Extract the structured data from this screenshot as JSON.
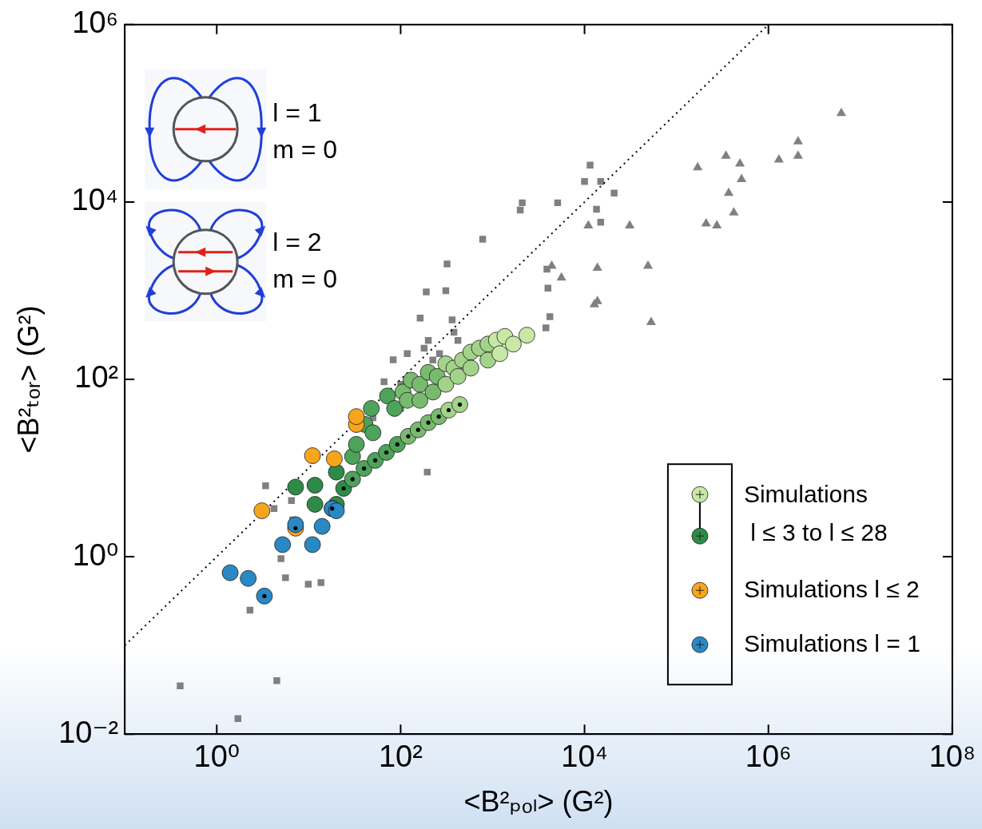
{
  "chart_data": {
    "type": "scatter",
    "x_label": "<B²ₚₒₗ> (G²)",
    "y_label": "<B²ₜₒᵣ> (G²)",
    "log": true,
    "grid": false,
    "legend": "bottom right",
    "xlim": [
      0.1,
      100000000
    ],
    "ylim": [
      0.01,
      1000000
    ],
    "xticks": [
      {
        "value": 1,
        "label": "10⁰"
      },
      {
        "value": 100,
        "label": "10²"
      },
      {
        "value": 10000,
        "label": "10⁴"
      },
      {
        "value": 1000000,
        "label": "10⁶"
      },
      {
        "value": 100000000,
        "label": "10⁸"
      }
    ],
    "yticks": [
      {
        "value": 0.01,
        "label": "10⁻²"
      },
      {
        "value": 1,
        "label": "10⁰"
      },
      {
        "value": 100,
        "label": "10²"
      },
      {
        "value": 10000,
        "label": "10⁴"
      },
      {
        "value": 1000000,
        "label": "10⁶"
      }
    ],
    "annotations": [
      "l = 1",
      "m = 0",
      "l = 2",
      "m = 0"
    ],
    "series": [
      {
        "color": "#808080",
        "marker": "square",
        "values": [
          [
            0.4,
            0.035
          ],
          [
            1.7,
            0.015
          ],
          [
            4.5,
            0.04
          ],
          [
            3.4,
            6.3
          ],
          [
            2.3,
            0.25
          ],
          [
            4.9,
            1.4
          ],
          [
            5,
            0.95
          ],
          [
            5.6,
            0.58
          ],
          [
            9.9,
            0.49
          ],
          [
            13.6,
            0.51
          ],
          [
            4.2,
            3.5
          ],
          [
            6.5,
            4.3
          ],
          [
            6.7,
            2.6
          ],
          [
            66,
            94
          ],
          [
            83,
            166
          ],
          [
            118,
            195
          ],
          [
            100,
            88
          ],
          [
            190,
            970
          ],
          [
            163,
            490
          ],
          [
            320,
            2000
          ],
          [
            310,
            1000
          ],
          [
            363,
            468
          ],
          [
            380,
            340
          ],
          [
            200,
            275
          ],
          [
            265,
            195
          ],
          [
            224,
            165
          ],
          [
            180,
            225
          ],
          [
            340,
            150
          ],
          [
            420,
            275
          ],
          [
            100,
            47
          ],
          [
            50,
            37
          ],
          [
            195,
            9
          ],
          [
            780,
            3800
          ],
          [
            2100,
            9800
          ],
          [
            2000,
            8100
          ],
          [
            5100,
            9800
          ],
          [
            3900,
            1750
          ],
          [
            4000,
            1070
          ],
          [
            4200,
            510
          ],
          [
            3800,
            380
          ],
          [
            11500,
            26000
          ],
          [
            10000,
            17000
          ],
          [
            15000,
            17000
          ],
          [
            13500,
            8300
          ],
          [
            15000,
            5900
          ],
          [
            21000,
            12600
          ]
        ]
      },
      {
        "color": "#808080",
        "marker": "triangle",
        "values": [
          [
            11000,
            5400
          ],
          [
            4400,
            1900
          ],
          [
            5600,
            1400
          ],
          [
            13800,
            1800
          ],
          [
            12800,
            700
          ],
          [
            13800,
            760
          ],
          [
            31000,
            5400
          ],
          [
            49000,
            1900
          ],
          [
            53000,
            440
          ],
          [
            170000,
            24500
          ],
          [
            210000,
            5700
          ],
          [
            275000,
            5400
          ],
          [
            345000,
            33000
          ],
          [
            490000,
            27000
          ],
          [
            510000,
            18000
          ],
          [
            370000,
            12600
          ],
          [
            420000,
            7600
          ],
          [
            1300000,
            30000
          ],
          [
            2100000,
            48000
          ],
          [
            2100000,
            33000
          ],
          [
            6200000,
            100000
          ]
        ]
      },
      {
        "type": "line",
        "line_style": "dotted",
        "color": "#000000",
        "values": [
          [
            0.1,
            0.1
          ],
          [
            1000000,
            1000000
          ]
        ]
      },
      {
        "name": "Simulations l ≤ 3 to l ≤ 28",
        "marker": "circle",
        "colors": [
          "#2e8b47",
          "#2e8b47",
          "#2e8b47",
          "#2e8b47",
          "#2e8b47",
          "#4da35a",
          "#4da35a",
          "#4da35a",
          "#4da35a",
          "#4da35a",
          "#4da35a",
          "#4da35a",
          "#78bb6e",
          "#78bb6e",
          "#78bb6e",
          "#78bb6e",
          "#78bb6e",
          "#78bb6e",
          "#78bb6e",
          "#78bb6e",
          "#a3d38a",
          "#a3d38a",
          "#a3d38a",
          "#a3d38a",
          "#a3d38a",
          "#a3d38a",
          "#a3d38a",
          "#a3d38a",
          "#a3d38a",
          "#a3d38a",
          "#c8e8a6",
          "#c8e8a6",
          "#c8e8a6",
          "#c8e8a6",
          "#c8e8a6"
        ],
        "values": [
          [
            7.2,
            6.1
          ],
          [
            11.7,
            3.9
          ],
          [
            11.7,
            6.4
          ],
          [
            20,
            3.9
          ],
          [
            20,
            9
          ],
          [
            30,
            13.5
          ],
          [
            33,
            18.5
          ],
          [
            41,
            31
          ],
          [
            48,
            47
          ],
          [
            50,
            25
          ],
          [
            72,
            65
          ],
          [
            86,
            47
          ],
          [
            106,
            72
          ],
          [
            118,
            58
          ],
          [
            130,
            98
          ],
          [
            162,
            88
          ],
          [
            162,
            58
          ],
          [
            200,
            120
          ],
          [
            225,
            72
          ],
          [
            250,
            108
          ],
          [
            310,
            150
          ],
          [
            310,
            88
          ],
          [
            380,
            134
          ],
          [
            420,
            108
          ],
          [
            470,
            165
          ],
          [
            580,
            203
          ],
          [
            580,
            134
          ],
          [
            720,
            225
          ],
          [
            890,
            250
          ],
          [
            890,
            165
          ],
          [
            1100,
            277
          ],
          [
            1200,
            195
          ],
          [
            1360,
            305
          ],
          [
            1680,
            250
          ],
          [
            2360,
            315
          ]
        ]
      },
      {
        "name": "Simulations l ≤ 3 to l ≤ 28",
        "marker": "circle-dot",
        "colors": [
          "#2e8b47",
          "#2e8b47",
          "#4da35a",
          "#4da35a",
          "#4da35a",
          "#4da35a",
          "#4da35a",
          "#78bb6e",
          "#78bb6e",
          "#78bb6e",
          "#78bb6e",
          "#a3d38a",
          "#a3d38a"
        ],
        "values": [
          [
            18,
            3.5
          ],
          [
            24,
            5.9
          ],
          [
            30,
            7.5
          ],
          [
            40,
            9.9
          ],
          [
            53,
            12.2
          ],
          [
            70,
            15
          ],
          [
            92,
            18.5
          ],
          [
            121,
            22.8
          ],
          [
            155,
            27
          ],
          [
            200,
            32.5
          ],
          [
            260,
            38
          ],
          [
            333,
            45
          ],
          [
            440,
            52
          ]
        ]
      },
      {
        "name": "Simulations l ≤ 2",
        "marker": "circle",
        "color": "#f7a51c",
        "values": [
          [
            3.1,
            3.3
          ],
          [
            11,
            13.8
          ],
          [
            19,
            12.7
          ],
          [
            33,
            31
          ],
          [
            33,
            38
          ]
        ]
      },
      {
        "name": "Simulations l ≤ 2",
        "marker": "circle-dot",
        "color": "#f7a51c",
        "values": [
          [
            7.2,
            2.1
          ]
        ]
      },
      {
        "name": "Simulations l = 1",
        "marker": "circle",
        "color": "#2a88c4",
        "values": [
          [
            1.4,
            0.66
          ],
          [
            2.2,
            0.57
          ],
          [
            5.2,
            1.37
          ],
          [
            7.2,
            2.3
          ],
          [
            11,
            1.37
          ],
          [
            14,
            2.2
          ],
          [
            18,
            3.5
          ],
          [
            20,
            3.3
          ]
        ]
      },
      {
        "name": "Simulations l = 1",
        "marker": "circle-dot",
        "color": "#2a88c4",
        "values": [
          [
            3.3,
            0.36
          ]
        ]
      }
    ]
  }
}
